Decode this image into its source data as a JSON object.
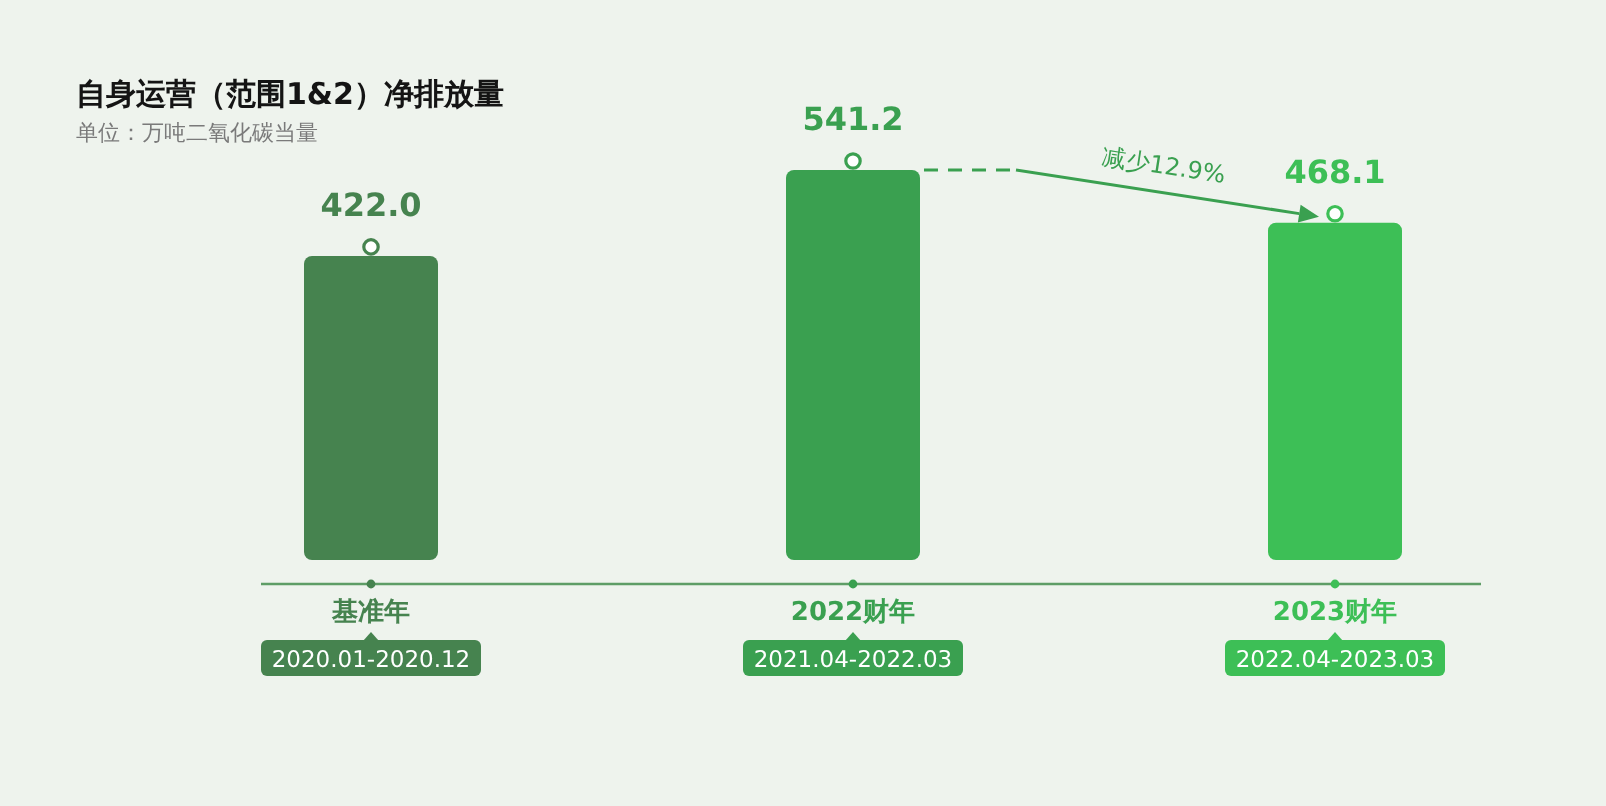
{
  "chart_data": {
    "type": "bar",
    "title": "自身运营（范围1&2）净排放量",
    "subtitle": "单位：万吨二氧化碳当量",
    "categories": [
      "基准年",
      "2022财年",
      "2023财年"
    ],
    "values": [
      422.0,
      541.2,
      468.1
    ],
    "value_labels": [
      "422.0",
      "541.2",
      "468.1"
    ],
    "colors": [
      "#46834f",
      "#3aa050",
      "#3dbf56"
    ],
    "annotations": [
      "2020.01-2020.12",
      "2021.04-2022.03",
      "2022.04-2023.03",
      "减少12.9%"
    ]
  }
}
